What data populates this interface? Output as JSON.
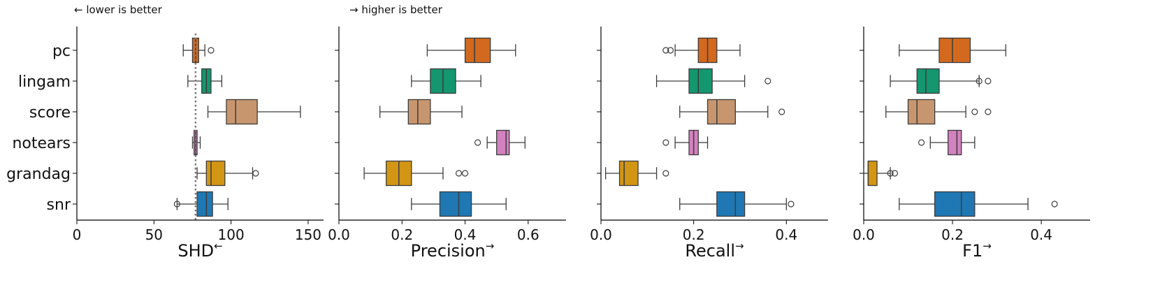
{
  "annotations": {
    "lower_note": "← lower is better",
    "higher_note": "→ higher is better"
  },
  "chart_data": [
    {
      "type": "boxplot",
      "xlabel": "SHD",
      "xlabel_arrow": "←",
      "xlim": [
        0,
        160
      ],
      "xticks": [
        0,
        50,
        100,
        150
      ],
      "tick_labels": [
        "0",
        "50",
        "100",
        "150"
      ],
      "reference_line": 77,
      "categories": [
        "pc",
        "lingam",
        "score",
        "notears",
        "grandag",
        "snr"
      ],
      "colors": [
        "#d2691e",
        "#14966e",
        "#c8966e",
        "#d282be",
        "#d29614",
        "#1f78b4"
      ],
      "boxes": [
        {
          "label": "pc",
          "whislo": 69,
          "q1": 75,
          "med": 77,
          "q3": 79,
          "whishi": 83,
          "fliers": [
            87
          ]
        },
        {
          "label": "lingam",
          "whislo": 72,
          "q1": 81,
          "med": 84,
          "q3": 87,
          "whishi": 94,
          "fliers": []
        },
        {
          "label": "score",
          "whislo": 85,
          "q1": 97,
          "med": 103,
          "q3": 117,
          "whishi": 145,
          "fliers": []
        },
        {
          "label": "notears",
          "whislo": 75,
          "q1": 76,
          "med": 77,
          "q3": 78,
          "whishi": 80,
          "fliers": []
        },
        {
          "label": "grandag",
          "whislo": 78,
          "q1": 84,
          "med": 87,
          "q3": 96,
          "whishi": 114,
          "fliers": [
            116
          ]
        },
        {
          "label": "snr",
          "whislo": 65,
          "q1": 78,
          "med": 84,
          "q3": 88,
          "whishi": 98,
          "fliers": [
            65
          ]
        }
      ]
    },
    {
      "type": "boxplot",
      "xlabel": "Precision",
      "xlabel_arrow": "→",
      "xlim": [
        0,
        0.72
      ],
      "xticks": [
        0,
        0.2,
        0.4,
        0.6
      ],
      "tick_labels": [
        "0.0",
        "0.2",
        "0.4",
        "0.6"
      ],
      "categories": [
        "pc",
        "lingam",
        "score",
        "notears",
        "grandag",
        "snr"
      ],
      "colors": [
        "#d2691e",
        "#14966e",
        "#c8966e",
        "#d282be",
        "#d29614",
        "#1f78b4"
      ],
      "boxes": [
        {
          "label": "pc",
          "whislo": 0.28,
          "q1": 0.4,
          "med": 0.43,
          "q3": 0.48,
          "whishi": 0.56,
          "fliers": []
        },
        {
          "label": "lingam",
          "whislo": 0.23,
          "q1": 0.29,
          "med": 0.33,
          "q3": 0.37,
          "whishi": 0.45,
          "fliers": []
        },
        {
          "label": "score",
          "whislo": 0.13,
          "q1": 0.22,
          "med": 0.25,
          "q3": 0.29,
          "whishi": 0.39,
          "fliers": []
        },
        {
          "label": "notears",
          "whislo": 0.47,
          "q1": 0.5,
          "med": 0.53,
          "q3": 0.54,
          "whishi": 0.59,
          "fliers": [
            0.44
          ]
        },
        {
          "label": "grandag",
          "whislo": 0.08,
          "q1": 0.15,
          "med": 0.19,
          "q3": 0.23,
          "whishi": 0.33,
          "fliers": [
            0.38,
            0.4
          ]
        },
        {
          "label": "snr",
          "whislo": 0.23,
          "q1": 0.32,
          "med": 0.38,
          "q3": 0.42,
          "whishi": 0.53,
          "fliers": []
        }
      ]
    },
    {
      "type": "boxplot",
      "xlabel": "Recall",
      "xlabel_arrow": "→",
      "xlim": [
        0,
        0.49
      ],
      "xticks": [
        0,
        0.2,
        0.4
      ],
      "tick_labels": [
        "0.0",
        "0.2",
        "0.4"
      ],
      "categories": [
        "pc",
        "lingam",
        "score",
        "notears",
        "grandag",
        "snr"
      ],
      "colors": [
        "#d2691e",
        "#14966e",
        "#c8966e",
        "#d282be",
        "#d29614",
        "#1f78b4"
      ],
      "boxes": [
        {
          "label": "pc",
          "whislo": 0.16,
          "q1": 0.21,
          "med": 0.23,
          "q3": 0.25,
          "whishi": 0.3,
          "fliers": [
            0.14,
            0.15
          ]
        },
        {
          "label": "lingam",
          "whislo": 0.12,
          "q1": 0.19,
          "med": 0.21,
          "q3": 0.24,
          "whishi": 0.31,
          "fliers": [
            0.36
          ]
        },
        {
          "label": "score",
          "whislo": 0.17,
          "q1": 0.23,
          "med": 0.25,
          "q3": 0.29,
          "whishi": 0.36,
          "fliers": [
            0.39
          ]
        },
        {
          "label": "notears",
          "whislo": 0.16,
          "q1": 0.19,
          "med": 0.2,
          "q3": 0.21,
          "whishi": 0.23,
          "fliers": [
            0.14
          ]
        },
        {
          "label": "grandag",
          "whislo": 0.01,
          "q1": 0.04,
          "med": 0.05,
          "q3": 0.08,
          "whishi": 0.12,
          "fliers": [
            0.14
          ]
        },
        {
          "label": "snr",
          "whislo": 0.17,
          "q1": 0.25,
          "med": 0.29,
          "q3": 0.31,
          "whishi": 0.4,
          "fliers": [
            0.41
          ]
        }
      ]
    },
    {
      "type": "boxplot",
      "xlabel": "F1",
      "xlabel_arrow": "→",
      "xlim": [
        0,
        0.51
      ],
      "xticks": [
        0,
        0.2,
        0.4
      ],
      "tick_labels": [
        "0.0",
        "0.2",
        "0.4"
      ],
      "categories": [
        "pc",
        "lingam",
        "score",
        "notears",
        "grandag",
        "snr"
      ],
      "colors": [
        "#d2691e",
        "#14966e",
        "#c8966e",
        "#d282be",
        "#d29614",
        "#1f78b4"
      ],
      "boxes": [
        {
          "label": "pc",
          "whislo": 0.08,
          "q1": 0.17,
          "med": 0.2,
          "q3": 0.24,
          "whishi": 0.32,
          "fliers": []
        },
        {
          "label": "lingam",
          "whislo": 0.06,
          "q1": 0.12,
          "med": 0.14,
          "q3": 0.17,
          "whishi": 0.26,
          "fliers": [
            0.26,
            0.28
          ]
        },
        {
          "label": "score",
          "whislo": 0.05,
          "q1": 0.1,
          "med": 0.12,
          "q3": 0.16,
          "whishi": 0.23,
          "fliers": [
            0.25,
            0.28
          ]
        },
        {
          "label": "notears",
          "whislo": 0.15,
          "q1": 0.19,
          "med": 0.21,
          "q3": 0.22,
          "whishi": 0.25,
          "fliers": [
            0.13
          ]
        },
        {
          "label": "grandag",
          "whislo": 0.0,
          "q1": 0.01,
          "med": 0.01,
          "q3": 0.03,
          "whishi": 0.06,
          "fliers": [
            0.06,
            0.07
          ]
        },
        {
          "label": "snr",
          "whislo": 0.08,
          "q1": 0.16,
          "med": 0.22,
          "q3": 0.25,
          "whishi": 0.37,
          "fliers": [
            0.43
          ]
        }
      ]
    }
  ]
}
